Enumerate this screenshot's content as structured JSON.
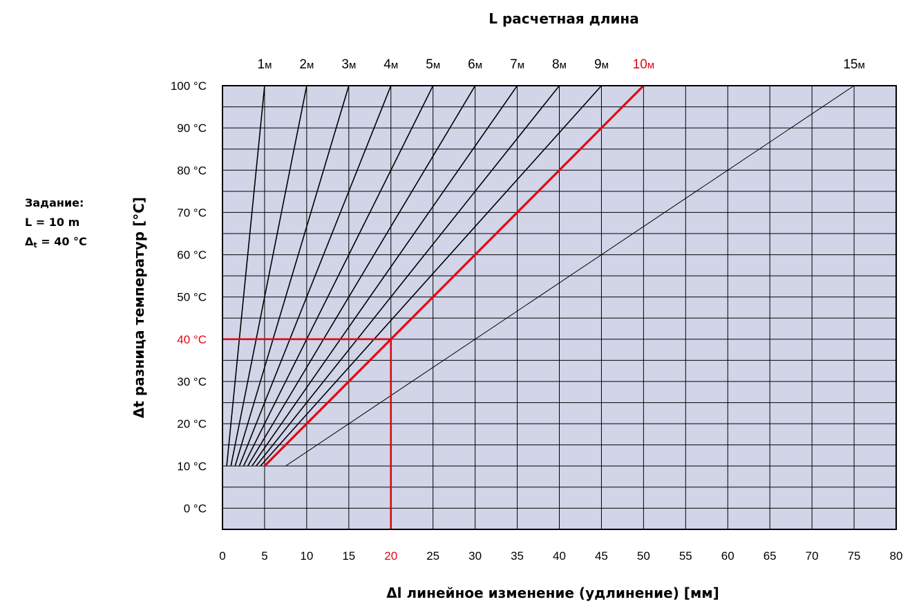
{
  "task": {
    "heading": "Задание:",
    "line_l": "L = 10 m",
    "dt_symbol": "Δ",
    "dt_sub": "t",
    "dt_value": " = 40 °C"
  },
  "colors": {
    "plot_bg": "#d2d5e8",
    "grid": "#000000",
    "highlight": "#e30613"
  },
  "chart_data": {
    "type": "line",
    "title": "L расчетная длина",
    "xlabel": "Δl линейное изменение (удлинение) [мм]",
    "ylabel": "Δt  разница температур [°C]",
    "xlim": [
      0,
      80
    ],
    "ylim": [
      -5,
      100
    ],
    "grid": true,
    "x_ticks": [
      0,
      5,
      10,
      15,
      20,
      25,
      30,
      35,
      40,
      45,
      50,
      55,
      60,
      65,
      70,
      75,
      80
    ],
    "x_tick_labels": [
      "0",
      "5",
      "10",
      "15",
      "20",
      "25",
      "30",
      "35",
      "40",
      "45",
      "50",
      "55",
      "60",
      "65",
      "70",
      "75",
      "80"
    ],
    "y_ticks": [
      0,
      10,
      20,
      30,
      40,
      50,
      60,
      70,
      80,
      90,
      100
    ],
    "y_tick_labels": [
      "0 °C",
      "10 °C",
      "20 °C",
      "30 °C",
      "40 °C",
      "50 °C",
      "60 °C",
      "70 °C",
      "80 °C",
      "90 °C",
      "100 °C"
    ],
    "series": [
      {
        "name": "1м",
        "x": [
          0.5,
          5
        ],
        "y": [
          10,
          100
        ]
      },
      {
        "name": "2м",
        "x": [
          1,
          10
        ],
        "y": [
          10,
          100
        ]
      },
      {
        "name": "3м",
        "x": [
          1.5,
          15
        ],
        "y": [
          10,
          100
        ]
      },
      {
        "name": "4м",
        "x": [
          2,
          20
        ],
        "y": [
          10,
          100
        ]
      },
      {
        "name": "5м",
        "x": [
          2.5,
          25
        ],
        "y": [
          10,
          100
        ]
      },
      {
        "name": "6м",
        "x": [
          3,
          30
        ],
        "y": [
          10,
          100
        ]
      },
      {
        "name": "7м",
        "x": [
          3.5,
          35
        ],
        "y": [
          10,
          100
        ]
      },
      {
        "name": "8м",
        "x": [
          4,
          40
        ],
        "y": [
          10,
          100
        ]
      },
      {
        "name": "9м",
        "x": [
          4.5,
          45
        ],
        "y": [
          10,
          100
        ]
      },
      {
        "name": "10м",
        "x": [
          5,
          50
        ],
        "y": [
          10,
          100
        ],
        "highlight": true
      },
      {
        "name": "15м",
        "x": [
          7.5,
          75
        ],
        "y": [
          10,
          100
        ]
      }
    ],
    "example": {
      "x": 20,
      "y": 40,
      "highlight_x_label": "20",
      "highlight_y_label": "40 °C",
      "highlight_series": "10м"
    }
  }
}
